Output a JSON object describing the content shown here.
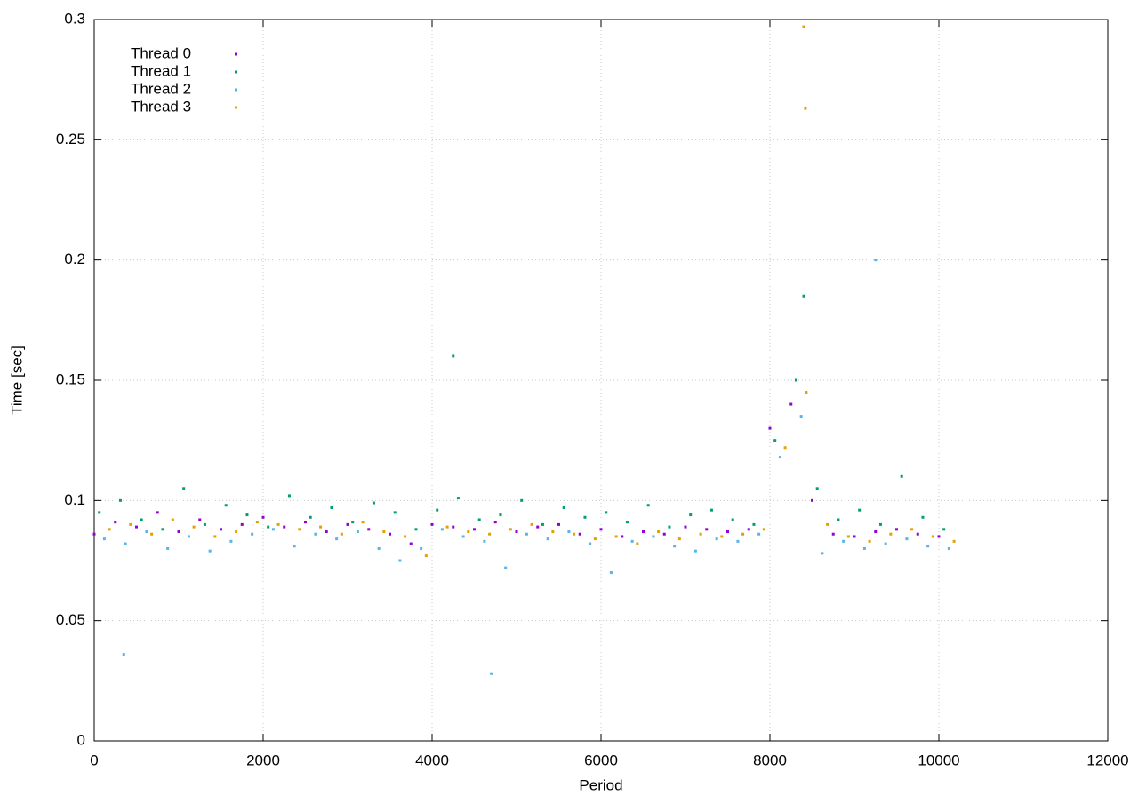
{
  "chart_data": {
    "type": "scatter",
    "xlabel": "Period",
    "ylabel": "Time [sec]",
    "xlim": [
      0,
      12000
    ],
    "ylim": [
      0,
      0.3
    ],
    "xticks": [
      0,
      2000,
      4000,
      6000,
      8000,
      10000,
      12000
    ],
    "yticks": [
      0,
      0.05,
      0.1,
      0.15,
      0.2,
      0.25,
      0.3
    ],
    "grid": true,
    "legend": "top-left",
    "series": [
      {
        "name": "Thread 0",
        "color": "#9400d3",
        "x": [
          0,
          250,
          500,
          750,
          1000,
          1250,
          1500,
          1750,
          2000,
          2250,
          2500,
          2750,
          3000,
          3250,
          3500,
          3750,
          4000,
          4250,
          4500,
          4750,
          5000,
          5250,
          5500,
          5750,
          6000,
          6250,
          6500,
          6750,
          7000,
          7250,
          7500,
          7750,
          8000,
          8250,
          8500,
          8750,
          9000,
          9250,
          9500,
          9750,
          10000
        ],
        "values": [
          0.086,
          0.091,
          0.089,
          0.095,
          0.087,
          0.092,
          0.088,
          0.09,
          0.093,
          0.089,
          0.091,
          0.087,
          0.09,
          0.088,
          0.086,
          0.082,
          0.09,
          0.089,
          0.088,
          0.091,
          0.087,
          0.089,
          0.09,
          0.086,
          0.088,
          0.085,
          0.087,
          0.086,
          0.089,
          0.088,
          0.087,
          0.088,
          0.13,
          0.14,
          0.1,
          0.086,
          0.085,
          0.087,
          0.088,
          0.086,
          0.085
        ]
      },
      {
        "name": "Thread 1",
        "color": "#009e73",
        "x": [
          60,
          310,
          560,
          810,
          1060,
          1310,
          1560,
          1810,
          2060,
          2310,
          2560,
          2810,
          3060,
          3310,
          3560,
          3810,
          4060,
          4310,
          4560,
          4810,
          5060,
          5310,
          5560,
          5810,
          6060,
          6310,
          6560,
          6810,
          7060,
          7310,
          7560,
          7810,
          8060,
          8310,
          8560,
          8810,
          9060,
          9310,
          9560,
          9810,
          10060,
          4250,
          8400
        ],
        "values": [
          0.095,
          0.1,
          0.092,
          0.088,
          0.105,
          0.09,
          0.098,
          0.094,
          0.089,
          0.102,
          0.093,
          0.097,
          0.091,
          0.099,
          0.095,
          0.088,
          0.096,
          0.101,
          0.092,
          0.094,
          0.1,
          0.09,
          0.097,
          0.093,
          0.095,
          0.091,
          0.098,
          0.089,
          0.094,
          0.096,
          0.092,
          0.09,
          0.125,
          0.15,
          0.105,
          0.092,
          0.096,
          0.09,
          0.11,
          0.093,
          0.088,
          0.16,
          0.185
        ]
      },
      {
        "name": "Thread 2",
        "color": "#56b4e9",
        "x": [
          120,
          370,
          620,
          870,
          1120,
          1370,
          1620,
          1870,
          2120,
          2370,
          2620,
          2870,
          3120,
          3370,
          3620,
          3870,
          4120,
          4370,
          4620,
          4870,
          5120,
          5370,
          5620,
          5870,
          6120,
          6370,
          6620,
          6870,
          7120,
          7370,
          7620,
          7870,
          8120,
          8370,
          8620,
          8870,
          9120,
          9370,
          9620,
          9870,
          10120,
          350,
          4700,
          9250
        ],
        "values": [
          0.084,
          0.082,
          0.087,
          0.08,
          0.085,
          0.079,
          0.083,
          0.086,
          0.088,
          0.081,
          0.086,
          0.084,
          0.087,
          0.08,
          0.075,
          0.08,
          0.088,
          0.085,
          0.083,
          0.072,
          0.086,
          0.084,
          0.087,
          0.082,
          0.07,
          0.083,
          0.085,
          0.081,
          0.079,
          0.084,
          0.083,
          0.086,
          0.118,
          0.135,
          0.078,
          0.083,
          0.08,
          0.082,
          0.084,
          0.081,
          0.08,
          0.036,
          0.028,
          0.2
        ]
      },
      {
        "name": "Thread 3",
        "color": "#e69f00",
        "x": [
          180,
          430,
          680,
          930,
          1180,
          1430,
          1680,
          1930,
          2180,
          2430,
          2680,
          2930,
          3180,
          3430,
          3680,
          3930,
          4180,
          4430,
          4680,
          4930,
          5180,
          5430,
          5680,
          5930,
          6180,
          6430,
          6680,
          6930,
          7180,
          7430,
          7680,
          7930,
          8180,
          8430,
          8680,
          8930,
          9180,
          9430,
          9680,
          9930,
          10180,
          8400,
          8420
        ],
        "values": [
          0.088,
          0.09,
          0.086,
          0.092,
          0.089,
          0.085,
          0.087,
          0.091,
          0.09,
          0.088,
          0.089,
          0.086,
          0.091,
          0.087,
          0.085,
          0.077,
          0.089,
          0.087,
          0.086,
          0.088,
          0.09,
          0.087,
          0.086,
          0.084,
          0.085,
          0.082,
          0.087,
          0.084,
          0.086,
          0.085,
          0.086,
          0.088,
          0.122,
          0.145,
          0.09,
          0.085,
          0.083,
          0.086,
          0.088,
          0.085,
          0.083,
          0.297,
          0.263
        ]
      }
    ]
  }
}
